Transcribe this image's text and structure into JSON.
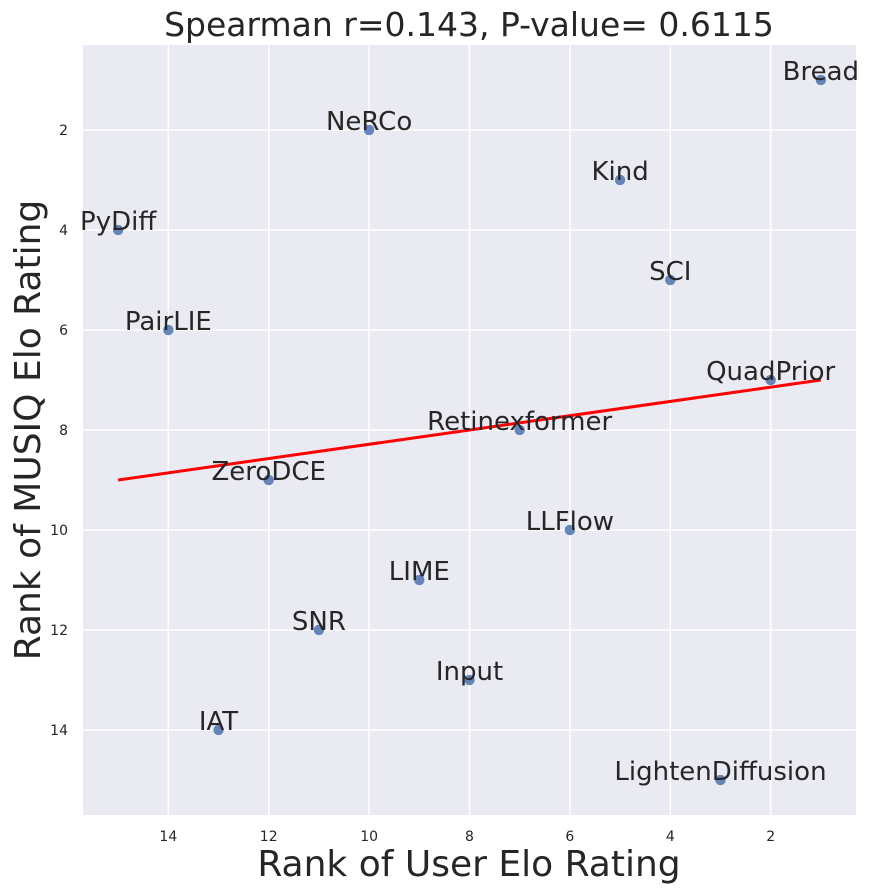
{
  "chart_data": {
    "type": "scatter",
    "title": "Spearman r=0.143, P-value= 0.6115",
    "xlabel": "Rank of User Elo Rating",
    "ylabel": "Rank of MUSIQ Elo Rating",
    "xlim": [
      15.7,
      0.3
    ],
    "ylim": [
      0.3,
      15.7
    ],
    "x_inverted": true,
    "y_inverted": true,
    "xticks": [
      14,
      12,
      10,
      8,
      6,
      4,
      2
    ],
    "yticks": [
      2,
      4,
      6,
      8,
      10,
      12,
      14
    ],
    "grid": true,
    "points": [
      {
        "label": "Bread",
        "x": 1,
        "y": 1
      },
      {
        "label": "NeRCo",
        "x": 10,
        "y": 2
      },
      {
        "label": "Kind",
        "x": 5,
        "y": 3
      },
      {
        "label": "PyDiff",
        "x": 15,
        "y": 4
      },
      {
        "label": "SCI",
        "x": 4,
        "y": 5
      },
      {
        "label": "PairLIE",
        "x": 14,
        "y": 6
      },
      {
        "label": "QuadPrior",
        "x": 2,
        "y": 7
      },
      {
        "label": "Retinexformer",
        "x": 7,
        "y": 8
      },
      {
        "label": "ZeroDCE",
        "x": 12,
        "y": 9
      },
      {
        "label": "LLFlow",
        "x": 6,
        "y": 10
      },
      {
        "label": "LIME",
        "x": 9,
        "y": 11
      },
      {
        "label": "SNR",
        "x": 11,
        "y": 12
      },
      {
        "label": "Input",
        "x": 8,
        "y": 13
      },
      {
        "label": "IAT",
        "x": 13,
        "y": 14
      },
      {
        "label": "LightenDiffusion",
        "x": 3,
        "y": 15
      }
    ],
    "trendline": {
      "x": [
        15,
        1
      ],
      "y": [
        9,
        7
      ]
    },
    "colors": {
      "background": "#eaeaf2",
      "grid": "#ffffff",
      "point": "#4c72b0",
      "trendline": "#ff0000",
      "text": "#262626"
    }
  }
}
